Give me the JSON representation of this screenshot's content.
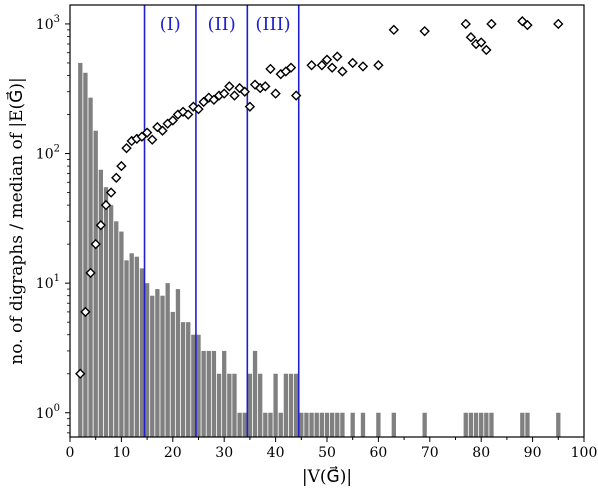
{
  "chart_data": {
    "type": "bar",
    "xlabel": "|V(G⃗)|",
    "ylabel": "no. of digraphs / median of |E(G⃗)|",
    "x_ticks": [
      0,
      10,
      20,
      30,
      40,
      50,
      60,
      70,
      80,
      90,
      100
    ],
    "xlim": [
      0,
      100
    ],
    "ylim": [
      0.65,
      1400
    ],
    "y_scale": "log",
    "y_ticks": [
      {
        "value": 1,
        "base": "10",
        "exp": "0"
      },
      {
        "value": 10,
        "base": "10",
        "exp": "1"
      },
      {
        "value": 100,
        "base": "10",
        "exp": "2"
      },
      {
        "value": 1000,
        "base": "10",
        "exp": "3"
      }
    ],
    "grid": false,
    "bar_color": "#808080",
    "marker_color": "#000000",
    "line_color": "#1f1fd0",
    "region_lines": [
      14.5,
      24.5,
      34.5,
      44.5
    ],
    "regions": [
      {
        "label": "(I)",
        "x": 19.5
      },
      {
        "label": "(II)",
        "x": 29.5
      },
      {
        "label": "(III)",
        "x": 39.5
      }
    ],
    "series": [
      {
        "type": "bar",
        "x": [
          2,
          3,
          4,
          5,
          6,
          7,
          8,
          9,
          10,
          11,
          12,
          13,
          14,
          15,
          16,
          17,
          18,
          19,
          20,
          21,
          22,
          23,
          24,
          25,
          26,
          27,
          28,
          29,
          30,
          31,
          32,
          33,
          34,
          35,
          36,
          37,
          38,
          39,
          40,
          41,
          42,
          43,
          44,
          45,
          46,
          47,
          48,
          49,
          50,
          51,
          52,
          53,
          55,
          57,
          60,
          63,
          69,
          77,
          78,
          79,
          80,
          81,
          82,
          88,
          89,
          95
        ],
        "values": [
          500,
          420,
          270,
          150,
          75,
          55,
          40,
          30,
          25,
          15,
          17,
          16,
          13,
          10,
          8,
          9,
          8,
          10,
          6,
          9,
          5,
          5,
          4,
          4,
          3,
          3,
          3,
          2,
          3,
          2,
          2,
          1,
          1,
          2,
          3,
          2,
          1,
          1,
          2,
          1,
          2,
          2,
          2,
          1,
          1,
          1,
          1,
          1,
          1,
          1,
          1,
          1,
          1,
          1,
          1,
          1,
          1,
          1,
          1,
          1,
          1,
          1,
          1,
          1,
          1,
          1
        ]
      },
      {
        "type": "scatter",
        "marker": "diamond",
        "x": [
          2,
          3,
          4,
          5,
          6,
          7,
          8,
          9,
          10,
          11,
          12,
          13,
          14,
          15,
          16,
          17,
          18,
          19,
          20,
          21,
          22,
          23,
          24,
          25,
          26,
          27,
          28,
          29,
          30,
          31,
          32,
          33,
          34,
          35,
          36,
          37,
          38,
          39,
          40,
          41,
          42,
          43,
          44,
          47,
          49,
          50,
          51,
          52,
          53,
          55,
          57,
          60,
          63,
          69,
          77,
          78,
          79,
          80,
          81,
          82,
          88,
          89,
          95
        ],
        "values": [
          2,
          6,
          12,
          20,
          28,
          40,
          50,
          65,
          80,
          110,
          125,
          130,
          135,
          145,
          128,
          160,
          150,
          170,
          180,
          200,
          210,
          200,
          230,
          220,
          250,
          270,
          260,
          280,
          290,
          330,
          280,
          320,
          300,
          230,
          340,
          320,
          330,
          450,
          290,
          410,
          430,
          460,
          280,
          480,
          480,
          530,
          460,
          560,
          430,
          500,
          470,
          480,
          900,
          880,
          1000,
          790,
          700,
          720,
          630,
          1000,
          1050,
          980,
          1000
        ]
      }
    ]
  }
}
